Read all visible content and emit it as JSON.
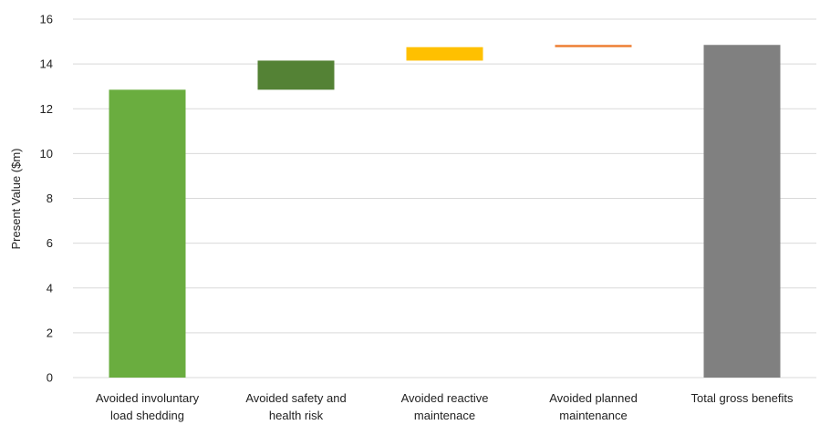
{
  "chart_data": {
    "type": "bar",
    "subtype": "waterfall",
    "ylabel": "Present Value ($m)",
    "ylim": [
      0,
      16
    ],
    "yticks": [
      0,
      2,
      4,
      6,
      8,
      10,
      12,
      14,
      16
    ],
    "grid": true,
    "categories": [
      [
        "Avoided involuntary",
        "load shedding"
      ],
      [
        "Avoided safety and",
        "health risk"
      ],
      [
        "Avoided reactive",
        "maintenace"
      ],
      [
        "Avoided planned",
        "maintenance"
      ],
      [
        "Total gross benefits"
      ]
    ],
    "bars": [
      {
        "base": 0,
        "value": 12.85,
        "color": "#6aad3f"
      },
      {
        "base": 12.85,
        "value": 1.3,
        "color": "#548235"
      },
      {
        "base": 14.15,
        "value": 0.6,
        "color": "#ffc000"
      },
      {
        "base": 14.75,
        "value": 0.1,
        "color": "#ed7d31"
      },
      {
        "base": 0,
        "value": 14.85,
        "color": "#808080"
      }
    ]
  }
}
